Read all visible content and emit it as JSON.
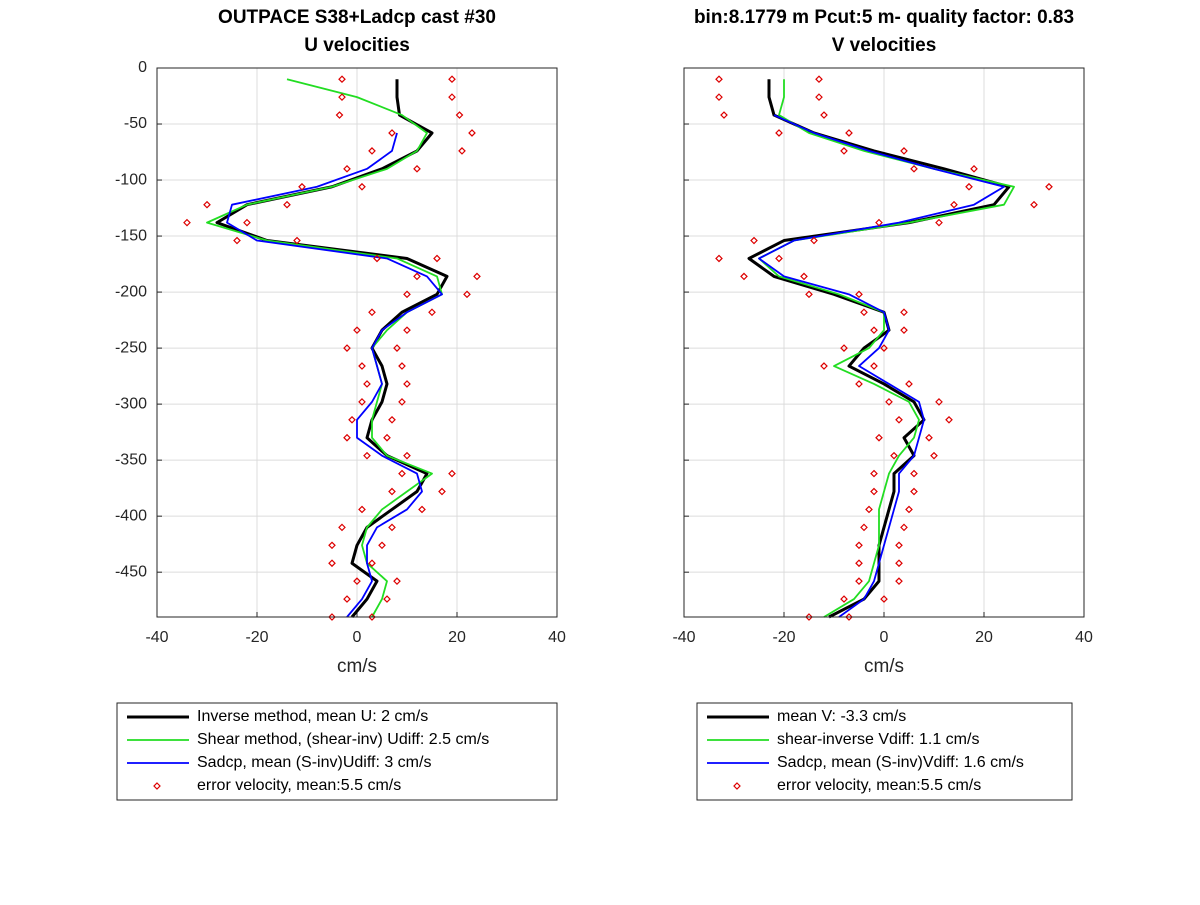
{
  "chart_data": [
    {
      "type": "line",
      "title": "OUTPACE S38+Ladcp cast #30",
      "subtitle": "U velocities",
      "xlabel": "cm/s",
      "xlim": [
        -40,
        40
      ],
      "xticks": [
        -40,
        -20,
        0,
        20,
        40
      ],
      "ylim": [
        -490,
        0
      ],
      "yticks": [
        0,
        -50,
        -100,
        -150,
        -200,
        -250,
        -300,
        -350,
        -400,
        -450
      ],
      "grid": true,
      "legend": "bottom",
      "y": [
        -10,
        -26,
        -42,
        -58,
        -74,
        -90,
        -106,
        -122,
        -138,
        -154,
        -170,
        -186,
        -202,
        -218,
        -234,
        -250,
        -266,
        -282,
        -298,
        -314,
        -330,
        -346,
        -362,
        -378,
        -394,
        -410,
        -426,
        -442,
        -458,
        -474,
        -490
      ],
      "series": [
        {
          "name": "Inverse method, mean U:  2 cm/s",
          "color": "#000000",
          "values": [
            8,
            8,
            8.5,
            15,
            12,
            5,
            -5,
            -22,
            -28,
            -18,
            10,
            18,
            16,
            9,
            5,
            3,
            5,
            6,
            5,
            3,
            2,
            6,
            14,
            12,
            7,
            2,
            0,
            -1,
            4,
            2,
            -1
          ]
        },
        {
          "name": "Shear method, (shear-inv)  Udiff:  2.5 cm/s",
          "color": "#22dd22",
          "values": [
            -14,
            0,
            9,
            14,
            12,
            6,
            -5,
            -22,
            -30,
            -18,
            8,
            16,
            17,
            10,
            6,
            3,
            4,
            5,
            4,
            3,
            3,
            6,
            15,
            10,
            5,
            2,
            1,
            2,
            6,
            5,
            3
          ]
        },
        {
          "name": "Sadcp, mean (S-inv)Udiff: 3 cm/s",
          "color": "#0000ff",
          "values": [
            null,
            null,
            null,
            8,
            7,
            2,
            -8,
            -25,
            -26,
            -20,
            6,
            14,
            17,
            10,
            5,
            3,
            4,
            5,
            3,
            0,
            0,
            5,
            12,
            13,
            10,
            4,
            2,
            2,
            3,
            1,
            -2
          ]
        },
        {
          "name": "error velocity, mean:5.5 cm/s",
          "color": "#dd0000",
          "values": [
            11,
            11,
            12,
            8,
            9,
            7,
            6,
            8,
            6,
            6,
            6,
            6,
            6,
            6,
            5,
            5,
            4,
            4,
            4,
            4,
            4,
            4,
            5,
            5,
            6,
            5,
            5,
            4,
            4,
            4,
            4
          ]
        }
      ]
    },
    {
      "type": "line",
      "title": "bin:8.1779 m  Pcut:5 m- quality factor:  0.83",
      "subtitle": "V velocities",
      "xlabel": "cm/s",
      "xlim": [
        -40,
        40
      ],
      "xticks": [
        -40,
        -20,
        0,
        20,
        40
      ],
      "ylim": [
        -490,
        0
      ],
      "yticks": [
        0,
        -50,
        -100,
        -150,
        -200,
        -250,
        -300,
        -350,
        -400,
        -450
      ],
      "grid": true,
      "legend": "bottom",
      "y": [
        -10,
        -26,
        -42,
        -58,
        -74,
        -90,
        -106,
        -122,
        -138,
        -154,
        -170,
        -186,
        -202,
        -218,
        -234,
        -250,
        -266,
        -282,
        -298,
        -314,
        -330,
        -346,
        -362,
        -378,
        -394,
        -410,
        -426,
        -442,
        -458,
        -474,
        -490
      ],
      "series": [
        {
          "name": "mean V:  -3.3 cm/s",
          "color": "#000000",
          "values": [
            -23,
            -23,
            -22,
            -14,
            -2,
            12,
            25,
            22,
            5,
            -20,
            -27,
            -22,
            -10,
            0,
            1,
            -4,
            -7,
            0,
            6,
            8,
            4,
            6,
            2,
            2,
            1,
            0,
            -1,
            -1,
            -1,
            -4,
            -11
          ]
        },
        {
          "name": "shear-inverse Vdiff:  1.1 cm/s",
          "color": "#22dd22",
          "values": [
            -20,
            -20,
            -21,
            -15,
            -4,
            10,
            26,
            24,
            5,
            -18,
            -25,
            -21,
            -9,
            0,
            0,
            -3,
            -10,
            -2,
            5,
            7,
            6,
            3,
            1,
            0,
            -1,
            -1,
            -1,
            -2,
            -3,
            -6,
            -12
          ]
        },
        {
          "name": "Sadcp, mean (S-inv)Vdiff: 1.6 cm/s",
          "color": "#0000ff",
          "values": [
            null,
            null,
            -22,
            -14,
            -3,
            10,
            24,
            18,
            3,
            -18,
            -25,
            -20,
            -7,
            0,
            1,
            -1,
            -5,
            1,
            7,
            8,
            7,
            6,
            3,
            3,
            2,
            1,
            0,
            -1,
            -2,
            -4,
            -9
          ]
        },
        {
          "name": "error velocity, mean:5.5 cm/s",
          "color": "#dd0000",
          "values": [
            10,
            10,
            10,
            7,
            6,
            6,
            8,
            8,
            6,
            6,
            6,
            6,
            5,
            4,
            3,
            4,
            5,
            5,
            5,
            5,
            5,
            4,
            4,
            4,
            4,
            4,
            4,
            4,
            4,
            4,
            4
          ]
        }
      ]
    }
  ]
}
